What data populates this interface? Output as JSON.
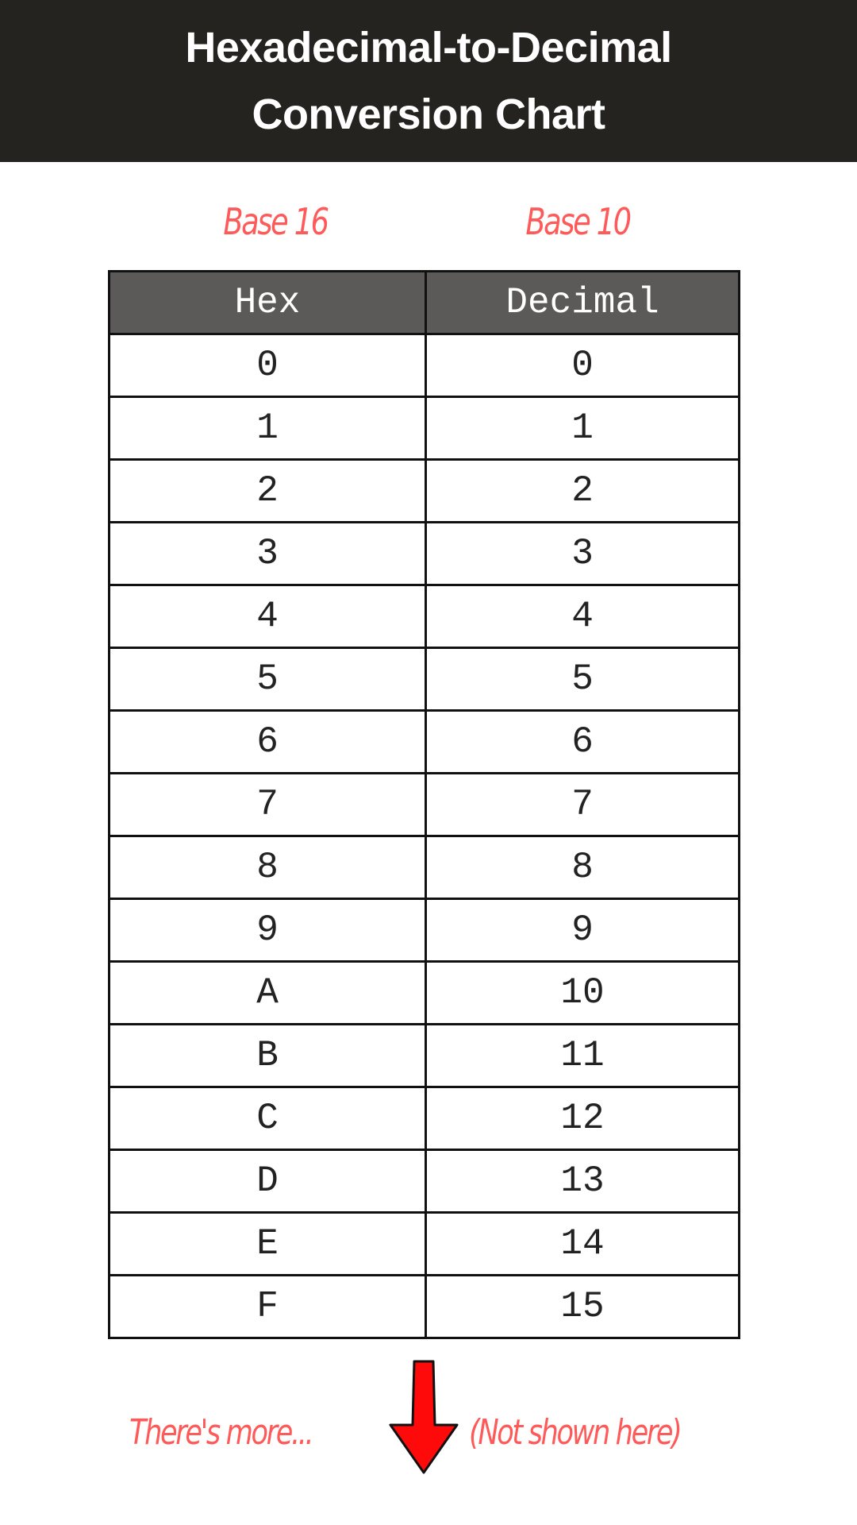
{
  "title": {
    "line1": "Hexadecimal-to-Decimal",
    "line2": "Conversion Chart"
  },
  "base_labels": {
    "hex": "Base 16",
    "decimal": "Base 10"
  },
  "table": {
    "headers": [
      "Hex",
      "Decimal"
    ],
    "rows": [
      [
        "0",
        "0"
      ],
      [
        "1",
        "1"
      ],
      [
        "2",
        "2"
      ],
      [
        "3",
        "3"
      ],
      [
        "4",
        "4"
      ],
      [
        "5",
        "5"
      ],
      [
        "6",
        "6"
      ],
      [
        "7",
        "7"
      ],
      [
        "8",
        "8"
      ],
      [
        "9",
        "9"
      ],
      [
        "A",
        "10"
      ],
      [
        "B",
        "11"
      ],
      [
        "C",
        "12"
      ],
      [
        "D",
        "13"
      ],
      [
        "E",
        "14"
      ],
      [
        "F",
        "15"
      ]
    ]
  },
  "footer": {
    "left_note": "There's more...",
    "right_note": "(Not shown here)",
    "arrow_icon": "arrow-down-icon"
  },
  "colors": {
    "header_bg": "#252320",
    "accent": "#ff5a5a",
    "table_header_bg": "#5b5a58",
    "arrow": "#ff0000"
  }
}
